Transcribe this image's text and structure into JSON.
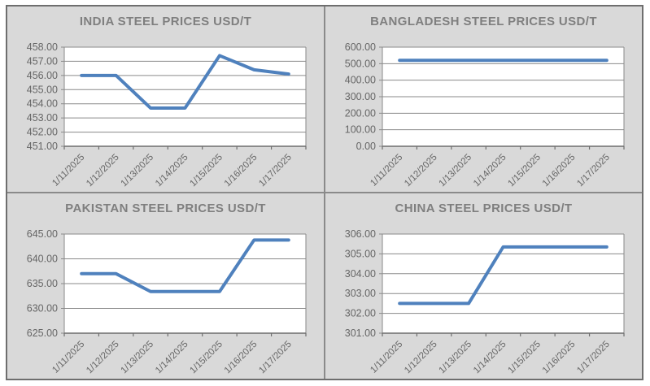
{
  "colors": {
    "line": "#4f81bd",
    "panel_background": "#d9d9d9",
    "plot_background": "#ffffff",
    "gridline": "#8a8a8a",
    "axis_line": "#6e6e6e",
    "title_text": "#7f7f7f",
    "tick_text": "#666666",
    "outer_frame": "#6e6e6e"
  },
  "chart_data": [
    {
      "type": "line",
      "title": "INDIA STEEL PRICES USD/T",
      "categories": [
        "1/11/2025",
        "1/12/2025",
        "1/13/2025",
        "1/14/2025",
        "1/15/2025",
        "1/16/2025",
        "1/17/2025"
      ],
      "values": [
        456.0,
        456.0,
        453.7,
        453.7,
        457.4,
        456.4,
        456.1
      ],
      "ylim": [
        451,
        458
      ],
      "ytick_step": 1,
      "ytick_labels": [
        "458.00",
        "457.00",
        "456.00",
        "455.00",
        "454.00",
        "453.00",
        "452.00",
        "451.00"
      ],
      "xlabel": "",
      "ylabel": "",
      "grid": true,
      "legend": "none"
    },
    {
      "type": "line",
      "title": "BANGLADESH STEEL PRICES USD/T",
      "categories": [
        "1/11/2025",
        "1/12/2025",
        "1/13/2025",
        "1/14/2025",
        "1/15/2025",
        "1/16/2025",
        "1/17/2025"
      ],
      "values": [
        520,
        520,
        520,
        520,
        520,
        520,
        520
      ],
      "ylim": [
        0,
        600
      ],
      "ytick_step": 100,
      "ytick_labels": [
        "600.00",
        "500.00",
        "400.00",
        "300.00",
        "200.00",
        "100.00",
        "0.00"
      ],
      "xlabel": "",
      "ylabel": "",
      "grid": true,
      "legend": "none"
    },
    {
      "type": "line",
      "title": "PAKISTAN STEEL PRICES USD/T",
      "categories": [
        "1/11/2025",
        "1/12/2025",
        "1/13/2025",
        "1/14/2025",
        "1/15/2025",
        "1/16/2025",
        "1/17/2025"
      ],
      "values": [
        637.0,
        637.0,
        633.4,
        633.4,
        633.4,
        643.8,
        643.8
      ],
      "ylim": [
        625,
        645
      ],
      "ytick_step": 5,
      "ytick_labels": [
        "645.00",
        "640.00",
        "635.00",
        "630.00",
        "625.00"
      ],
      "xlabel": "",
      "ylabel": "",
      "grid": true,
      "legend": "none"
    },
    {
      "type": "line",
      "title": "CHINA STEEL PRICES USD/T",
      "categories": [
        "1/11/2025",
        "1/12/2025",
        "1/13/2025",
        "1/14/2025",
        "1/15/2025",
        "1/16/2025",
        "1/17/2025"
      ],
      "values": [
        302.5,
        302.5,
        302.5,
        305.35,
        305.35,
        305.35,
        305.35
      ],
      "ylim": [
        301,
        306
      ],
      "ytick_step": 1,
      "ytick_labels": [
        "306.00",
        "305.00",
        "304.00",
        "303.00",
        "302.00",
        "301.00"
      ],
      "xlabel": "",
      "ylabel": "",
      "grid": true,
      "legend": "none"
    }
  ]
}
